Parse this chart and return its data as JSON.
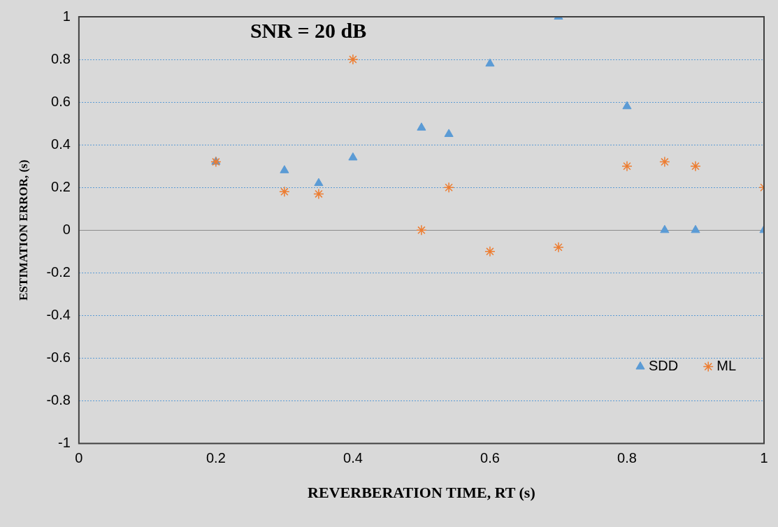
{
  "chart_data": {
    "type": "scatter",
    "title": "SNR = 20 dB",
    "xlabel": "REVERBERATION TIME, RT (s)",
    "ylabel": "ESTIMATION ERROR, (s)",
    "xlim": [
      0,
      1
    ],
    "xticks": [
      0,
      0.2,
      0.4,
      0.6,
      0.8,
      1
    ],
    "ylim": [
      -1,
      1
    ],
    "yticks": [
      -1,
      -0.8,
      -0.6,
      -0.4,
      -0.2,
      0,
      0.2,
      0.4,
      0.6,
      0.8,
      1
    ],
    "grid": "y",
    "legend": "bottom right",
    "series": [
      {
        "name": "SDD",
        "color": "#5b9bd5",
        "marker": "triangle",
        "x": [
          0.2,
          0.3,
          0.35,
          0.4,
          0.5,
          0.54,
          0.6,
          0.7,
          0.8,
          0.855,
          0.9,
          1.0
        ],
        "values": [
          0.32,
          0.28,
          0.22,
          0.34,
          0.48,
          0.45,
          0.78,
          1.0,
          0.58,
          0,
          0,
          0
        ]
      },
      {
        "name": "ML",
        "color": "#ed7d31",
        "marker": "cross",
        "x": [
          0.2,
          0.3,
          0.35,
          0.4,
          0.5,
          0.54,
          0.6,
          0.7,
          0.8,
          0.855,
          0.9,
          1.0
        ],
        "values": [
          0.32,
          0.18,
          0.17,
          0.8,
          0,
          0.2,
          -0.1,
          -0.08,
          0.3,
          0.32,
          0.3,
          0.2
        ]
      }
    ]
  }
}
